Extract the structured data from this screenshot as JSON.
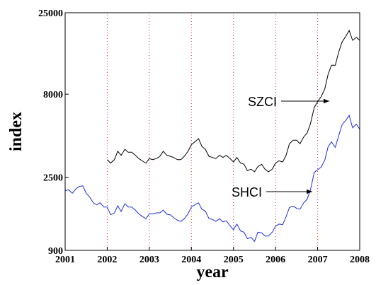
{
  "chart_data": {
    "type": "line",
    "xlabel": "year",
    "ylabel": "index",
    "xlim": [
      2001,
      2008
    ],
    "xticks": [
      2001,
      2002,
      2003,
      2004,
      2005,
      2006,
      2007,
      2008
    ],
    "ylim": [
      900,
      25000
    ],
    "yticks": [
      900,
      2500,
      8000,
      25000
    ],
    "log_y": true,
    "grid": "x",
    "grid_color": "#e03030",
    "annotations": [
      "SZCI",
      "SHCI"
    ],
    "series": [
      {
        "name": "SZCI",
        "color": "#000000",
        "x": [
          2002.0,
          2002.08,
          2002.17,
          2002.25,
          2002.33,
          2002.42,
          2002.5,
          2002.58,
          2002.67,
          2002.75,
          2002.83,
          2002.92,
          2003.0,
          2003.08,
          2003.17,
          2003.25,
          2003.33,
          2003.42,
          2003.5,
          2003.58,
          2003.67,
          2003.75,
          2003.83,
          2003.92,
          2004.0,
          2004.08,
          2004.17,
          2004.25,
          2004.33,
          2004.42,
          2004.5,
          2004.58,
          2004.67,
          2004.75,
          2004.83,
          2004.92,
          2005.0,
          2005.08,
          2005.17,
          2005.25,
          2005.33,
          2005.42,
          2005.5,
          2005.58,
          2005.67,
          2005.75,
          2005.83,
          2005.92,
          2006.0,
          2006.08,
          2006.17,
          2006.25,
          2006.33,
          2006.42,
          2006.5,
          2006.58,
          2006.67,
          2006.75,
          2006.83,
          2006.92,
          2007.0,
          2007.08,
          2007.17,
          2007.25,
          2007.33,
          2007.42,
          2007.5,
          2007.58,
          2007.67,
          2007.75,
          2007.83,
          2007.92,
          2008.0
        ],
        "values": [
          3200,
          3050,
          3200,
          3600,
          3400,
          3700,
          3550,
          3550,
          3400,
          3250,
          3150,
          3050,
          3250,
          3200,
          3250,
          3350,
          3600,
          3400,
          3350,
          3300,
          3200,
          3200,
          3350,
          3600,
          3950,
          4100,
          4300,
          3850,
          3700,
          3350,
          3300,
          3250,
          3400,
          3300,
          3400,
          3250,
          3100,
          3300,
          3050,
          3000,
          2750,
          2800,
          2700,
          2900,
          3000,
          2800,
          2700,
          2800,
          3050,
          3150,
          3100,
          3400,
          4000,
          4200,
          4200,
          4000,
          4400,
          4650,
          5300,
          6650,
          7200,
          7700,
          8600,
          10600,
          12000,
          12000,
          14400,
          16600,
          18000,
          19500,
          17000,
          17700,
          17000
        ]
      },
      {
        "name": "SHCI",
        "color": "#1f2fd8",
        "x": [
          2001.0,
          2001.08,
          2001.17,
          2001.25,
          2001.33,
          2001.42,
          2001.5,
          2001.58,
          2001.67,
          2001.75,
          2001.83,
          2001.92,
          2002.0,
          2002.08,
          2002.17,
          2002.25,
          2002.33,
          2002.42,
          2002.5,
          2002.58,
          2002.67,
          2002.75,
          2002.83,
          2002.92,
          2003.0,
          2003.08,
          2003.17,
          2003.25,
          2003.33,
          2003.42,
          2003.5,
          2003.58,
          2003.67,
          2003.75,
          2003.83,
          2003.92,
          2004.0,
          2004.08,
          2004.17,
          2004.25,
          2004.33,
          2004.42,
          2004.5,
          2004.58,
          2004.67,
          2004.75,
          2004.83,
          2004.92,
          2005.0,
          2005.08,
          2005.17,
          2005.25,
          2005.33,
          2005.42,
          2005.5,
          2005.58,
          2005.67,
          2005.75,
          2005.83,
          2005.92,
          2006.0,
          2006.08,
          2006.17,
          2006.25,
          2006.33,
          2006.42,
          2006.5,
          2006.58,
          2006.67,
          2006.75,
          2006.83,
          2006.92,
          2007.0,
          2007.08,
          2007.17,
          2007.25,
          2007.33,
          2007.42,
          2007.5,
          2007.58,
          2007.67,
          2007.75,
          2007.83,
          2007.92,
          2008.0
        ],
        "values": [
          2070,
          2100,
          2000,
          2120,
          2200,
          2220,
          2000,
          1900,
          1750,
          1700,
          1750,
          1650,
          1650,
          1480,
          1520,
          1680,
          1550,
          1730,
          1650,
          1650,
          1580,
          1500,
          1450,
          1400,
          1500,
          1500,
          1520,
          1520,
          1580,
          1490,
          1480,
          1420,
          1370,
          1350,
          1400,
          1500,
          1650,
          1700,
          1750,
          1600,
          1560,
          1400,
          1390,
          1350,
          1400,
          1340,
          1360,
          1270,
          1200,
          1300,
          1180,
          1160,
          1060,
          1080,
          1020,
          1160,
          1150,
          1100,
          1100,
          1160,
          1260,
          1300,
          1290,
          1440,
          1640,
          1670,
          1620,
          1600,
          1750,
          1840,
          2100,
          2680,
          2780,
          2880,
          3180,
          3840,
          4100,
          3800,
          4470,
          5220,
          5550,
          5950,
          5000,
          5260,
          4900
        ]
      }
    ]
  }
}
